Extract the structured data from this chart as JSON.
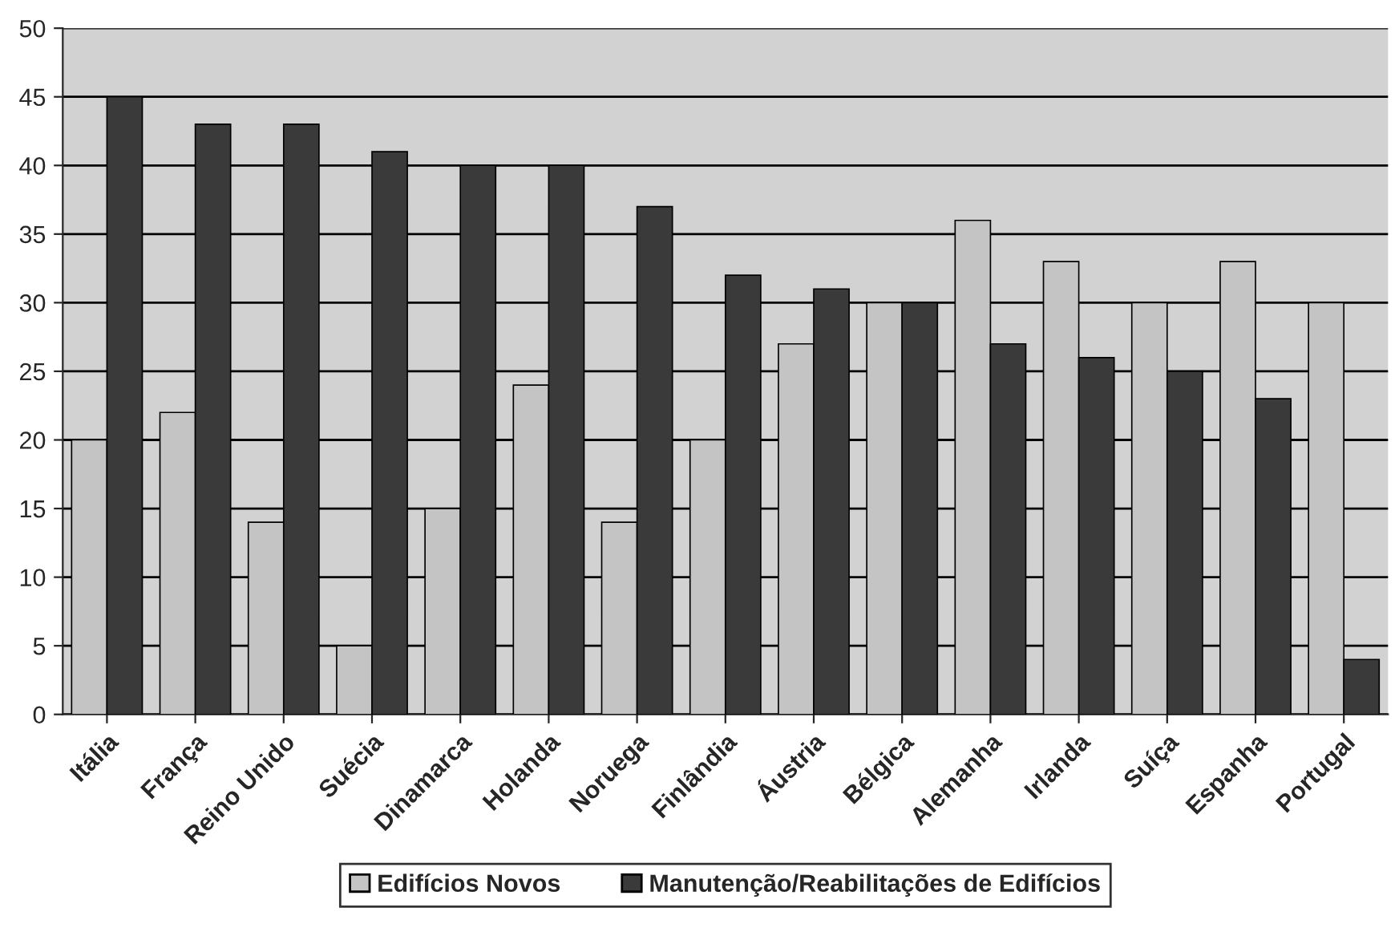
{
  "chart_data": {
    "type": "bar",
    "categories": [
      "Itália",
      "França",
      "Reino Unido",
      "Suécia",
      "Dinamarca",
      "Holanda",
      "Noruega",
      "Finlândia",
      "Áustria",
      "Bélgica",
      "Alemanha",
      "Irlanda",
      "Suíça",
      "Espanha",
      "Portugal"
    ],
    "series": [
      {
        "name": "Edifícios Novos",
        "color": "#c4c4c4",
        "values": [
          20,
          22,
          14,
          5,
          15,
          24,
          14,
          20,
          27,
          30,
          36,
          33,
          30,
          33,
          30
        ]
      },
      {
        "name": "Manutenção/Reabilitações de Edifícios",
        "color": "#3a3a3a",
        "values": [
          45,
          43,
          43,
          41,
          40,
          40,
          37,
          32,
          31,
          30,
          27,
          26,
          25,
          23,
          4
        ]
      }
    ],
    "ylim": [
      0,
      50
    ],
    "yticks": [
      0,
      5,
      10,
      15,
      20,
      25,
      30,
      35,
      40,
      45,
      50
    ],
    "grid": "y",
    "legend": "bottom"
  }
}
